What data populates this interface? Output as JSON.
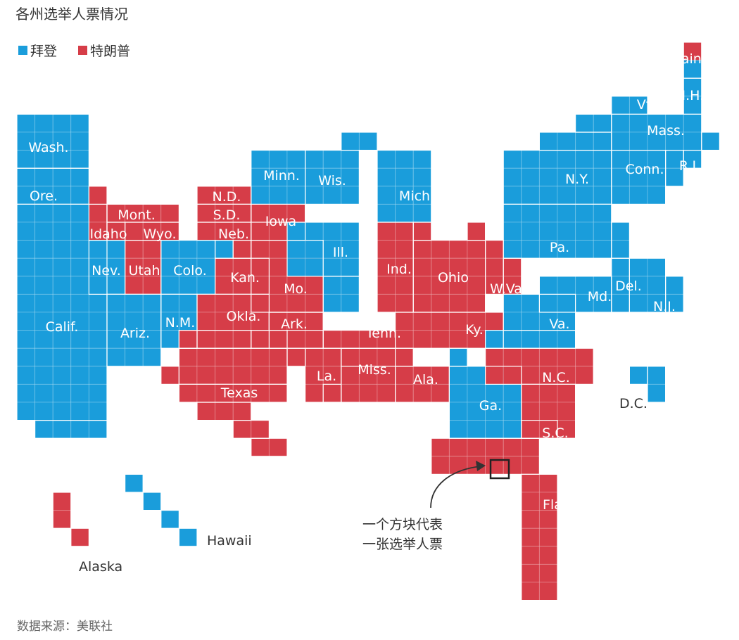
{
  "header": {
    "title": "各州选举人票情况"
  },
  "legend": [
    {
      "label": "拜登",
      "color": "#1a9ddb"
    },
    {
      "label": "特朗普",
      "color": "#d63d48"
    }
  ],
  "footer": {
    "source": "数据来源：美联社"
  },
  "annotation": {
    "line1": "一个方块代表",
    "line2": "一张选举人票"
  },
  "chart_data": {
    "type": "tile-map",
    "title": "各州选举人票情况",
    "unit": "一个方块代表一张选举人票",
    "series": [
      {
        "name": "拜登",
        "color": "#1a9ddb"
      },
      {
        "name": "特朗普",
        "color": "#d63d48"
      }
    ],
    "states": [
      {
        "label": "Wash.",
        "winner": "拜登",
        "electoral_votes": 12
      },
      {
        "label": "Ore.",
        "winner": "拜登",
        "electoral_votes": 7
      },
      {
        "label": "Calif.",
        "winner": "拜登",
        "electoral_votes": 55
      },
      {
        "label": "Nev.",
        "winner": "拜登",
        "electoral_votes": 6
      },
      {
        "label": "Idaho",
        "winner": "特朗普",
        "electoral_votes": 4
      },
      {
        "label": "Mont.",
        "winner": "特朗普",
        "electoral_votes": 3
      },
      {
        "label": "Wyo.",
        "winner": "特朗普",
        "electoral_votes": 3
      },
      {
        "label": "Utah",
        "winner": "特朗普",
        "electoral_votes": 6
      },
      {
        "label": "Colo.",
        "winner": "拜登",
        "electoral_votes": 9
      },
      {
        "label": "Ariz.",
        "winner": "拜登",
        "electoral_votes": 11
      },
      {
        "label": "N.M.",
        "winner": "拜登",
        "electoral_votes": 5
      },
      {
        "label": "N.D.",
        "winner": "特朗普",
        "electoral_votes": 3
      },
      {
        "label": "S.D.",
        "winner": "特朗普",
        "electoral_votes": 3
      },
      {
        "label": "Neb.",
        "winner": "特朗普",
        "electoral_votes": 4
      },
      {
        "label": "Kan.",
        "winner": "特朗普",
        "electoral_votes": 6
      },
      {
        "label": "Okla.",
        "winner": "特朗普",
        "electoral_votes": 7
      },
      {
        "label": "Texas",
        "winner": "特朗普",
        "electoral_votes": 38
      },
      {
        "label": "Minn.",
        "winner": "拜登",
        "electoral_votes": 10
      },
      {
        "label": "Iowa",
        "winner": "特朗普",
        "electoral_votes": 6
      },
      {
        "label": "Mo.",
        "winner": "特朗普",
        "electoral_votes": 10
      },
      {
        "label": "Ark.",
        "winner": "特朗普",
        "electoral_votes": 6
      },
      {
        "label": "La.",
        "winner": "特朗普",
        "electoral_votes": 8
      },
      {
        "label": "Wis.",
        "winner": "拜登",
        "electoral_votes": 10
      },
      {
        "label": "Ill.",
        "winner": "拜登",
        "electoral_votes": 20
      },
      {
        "label": "Mich.",
        "winner": "拜登",
        "electoral_votes": 16
      },
      {
        "label": "Ind.",
        "winner": "特朗普",
        "electoral_votes": 11
      },
      {
        "label": "Ohio",
        "winner": "特朗普",
        "electoral_votes": 18
      },
      {
        "label": "Ky.",
        "winner": "特朗普",
        "electoral_votes": 8
      },
      {
        "label": "Tenn.",
        "winner": "特朗普",
        "electoral_votes": 11
      },
      {
        "label": "Miss.",
        "winner": "特朗普",
        "electoral_votes": 6
      },
      {
        "label": "Ala.",
        "winner": "特朗普",
        "electoral_votes": 9
      },
      {
        "label": "Ga.",
        "winner": "拜登",
        "electoral_votes": 16
      },
      {
        "label": "Fla.",
        "winner": "特朗普",
        "electoral_votes": 29
      },
      {
        "label": "S.C.",
        "winner": "特朗普",
        "electoral_votes": 9
      },
      {
        "label": "N.C.",
        "winner": "特朗普",
        "electoral_votes": 15
      },
      {
        "label": "W.Va.",
        "winner": "特朗普",
        "electoral_votes": 5
      },
      {
        "label": "Va.",
        "winner": "拜登",
        "electoral_votes": 13
      },
      {
        "label": "Md.",
        "winner": "拜登",
        "electoral_votes": 10
      },
      {
        "label": "Del.",
        "winner": "拜登",
        "electoral_votes": 3
      },
      {
        "label": "N.J.",
        "winner": "拜登",
        "electoral_votes": 14
      },
      {
        "label": "Pa.",
        "winner": "拜登",
        "electoral_votes": 20
      },
      {
        "label": "N.Y.",
        "winner": "拜登",
        "electoral_votes": 29
      },
      {
        "label": "Conn.",
        "winner": "拜登",
        "electoral_votes": 7
      },
      {
        "label": "R.I.",
        "winner": "拜登",
        "electoral_votes": 4
      },
      {
        "label": "Mass.",
        "winner": "拜登",
        "electoral_votes": 11
      },
      {
        "label": "Vt.",
        "winner": "拜登",
        "electoral_votes": 3
      },
      {
        "label": "N.H.",
        "winner": "拜登",
        "electoral_votes": 4
      },
      {
        "label": "Maine",
        "winner": "拜登",
        "electoral_votes": 4,
        "split": {
          "拜登": 3,
          "特朗普": 1
        }
      },
      {
        "label": "D.C.",
        "winner": "拜登",
        "electoral_votes": 3
      },
      {
        "label": "Alaska",
        "winner": "特朗普",
        "electoral_votes": 3
      },
      {
        "label": "Hawaii",
        "winner": "拜登",
        "electoral_votes": 4
      }
    ]
  }
}
